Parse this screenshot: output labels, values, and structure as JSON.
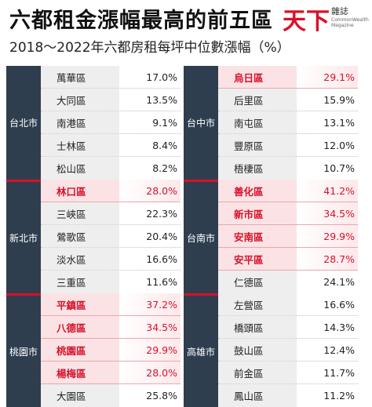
{
  "header": {
    "title": "六都租金漲幅最高的前五區",
    "subtitle": "2018～2022年六都房租每坪中位數漲幅（%）",
    "logo_main": "天下",
    "logo_sub": "雜誌",
    "logo_en": "CommonWealth Magazine"
  },
  "colors": {
    "highlight": "#d8112a",
    "city_bg": "#2e3e4f",
    "district_bg": "#eeeeee"
  },
  "chart_data": {
    "type": "table",
    "title": "六都租金漲幅最高的前五區",
    "subtitle": "2018～2022年六都房租每坪中位數漲幅（%）",
    "unit": "%",
    "groups": [
      {
        "city": "台北市",
        "rows": [
          {
            "district": "萬華區",
            "value": 17.0,
            "label": "17.0%",
            "highlight": false
          },
          {
            "district": "大同區",
            "value": 13.5,
            "label": "13.5%",
            "highlight": false
          },
          {
            "district": "南港區",
            "value": 9.1,
            "label": "9.1%",
            "highlight": false
          },
          {
            "district": "士林區",
            "value": 8.4,
            "label": "8.4%",
            "highlight": false
          },
          {
            "district": "松山區",
            "value": 8.2,
            "label": "8.2%",
            "highlight": false
          }
        ]
      },
      {
        "city": "新北市",
        "rows": [
          {
            "district": "林口區",
            "value": 28.0,
            "label": "28.0%",
            "highlight": true
          },
          {
            "district": "三峽區",
            "value": 22.3,
            "label": "22.3%",
            "highlight": false
          },
          {
            "district": "鶯歌區",
            "value": 20.4,
            "label": "20.4%",
            "highlight": false
          },
          {
            "district": "淡水區",
            "value": 16.6,
            "label": "16.6%",
            "highlight": false
          },
          {
            "district": "三重區",
            "value": 11.6,
            "label": "11.6%",
            "highlight": false
          }
        ]
      },
      {
        "city": "桃園市",
        "rows": [
          {
            "district": "平鎮區",
            "value": 37.2,
            "label": "37.2%",
            "highlight": true
          },
          {
            "district": "八德區",
            "value": 34.5,
            "label": "34.5%",
            "highlight": true
          },
          {
            "district": "桃園區",
            "value": 29.9,
            "label": "29.9%",
            "highlight": true
          },
          {
            "district": "楊梅區",
            "value": 28.0,
            "label": "28.0%",
            "highlight": true
          },
          {
            "district": "大園區",
            "value": 25.8,
            "label": "25.8%",
            "highlight": false
          }
        ]
      },
      {
        "city": "台中市",
        "rows": [
          {
            "district": "烏日區",
            "value": 29.1,
            "label": "29.1%",
            "highlight": true
          },
          {
            "district": "后里區",
            "value": 15.9,
            "label": "15.9%",
            "highlight": false
          },
          {
            "district": "南屯區",
            "value": 13.1,
            "label": "13.1%",
            "highlight": false
          },
          {
            "district": "豐原區",
            "value": 12.0,
            "label": "12.0%",
            "highlight": false
          },
          {
            "district": "梧棲區",
            "value": 10.7,
            "label": "10.7%",
            "highlight": false
          }
        ]
      },
      {
        "city": "台南市",
        "rows": [
          {
            "district": "善化區",
            "value": 41.2,
            "label": "41.2%",
            "highlight": true
          },
          {
            "district": "新市區",
            "value": 34.5,
            "label": "34.5%",
            "highlight": true
          },
          {
            "district": "安南區",
            "value": 29.9,
            "label": "29.9%",
            "highlight": true
          },
          {
            "district": "安平區",
            "value": 28.7,
            "label": "28.7%",
            "highlight": true
          },
          {
            "district": "仁德區",
            "value": 24.1,
            "label": "24.1%",
            "highlight": false
          }
        ]
      },
      {
        "city": "高雄市",
        "rows": [
          {
            "district": "左營區",
            "value": 16.6,
            "label": "16.6%",
            "highlight": false
          },
          {
            "district": "橋頭區",
            "value": 14.3,
            "label": "14.3%",
            "highlight": false
          },
          {
            "district": "鼓山區",
            "value": 12.4,
            "label": "12.4%",
            "highlight": false
          },
          {
            "district": "前金區",
            "value": 11.7,
            "label": "11.7%",
            "highlight": false
          },
          {
            "district": "鳳山區",
            "value": 11.2,
            "label": "11.2%",
            "highlight": false
          }
        ]
      }
    ]
  }
}
